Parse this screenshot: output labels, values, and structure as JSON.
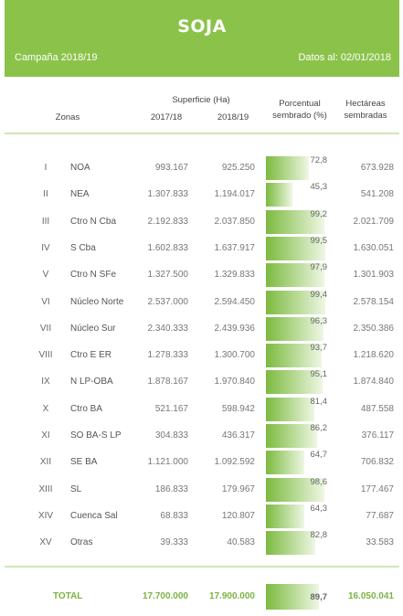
{
  "title": "SOJA",
  "campaign": "Campaña 2018/19",
  "date": "Datos al: 02/01/2018",
  "headers": {
    "zonas": "Zonas",
    "superficie": "Superficie (Ha)",
    "y1": "2017/18",
    "y2": "2018/19",
    "pct_line1": "Porcentual",
    "pct_line2": "sembrado (%)",
    "ha_line1": "Hectáreas",
    "ha_line2": "sembradas"
  },
  "rows": [
    {
      "roman": "I",
      "zona": "NOA",
      "y1": "993.167",
      "y2": "925.250",
      "pct": "72,8",
      "ha": "673.928"
    },
    {
      "roman": "II",
      "zona": "NEA",
      "y1": "1.307.833",
      "y2": "1.194.017",
      "pct": "45,3",
      "ha": "541.208"
    },
    {
      "roman": "III",
      "zona": "Ctro N Cba",
      "y1": "2.192.833",
      "y2": "2.037.850",
      "pct": "99,2",
      "ha": "2.021.709"
    },
    {
      "roman": "IV",
      "zona": "S Cba",
      "y1": "1.602.833",
      "y2": "1.637.917",
      "pct": "99,5",
      "ha": "1.630.051"
    },
    {
      "roman": "V",
      "zona": "Ctro N SFe",
      "y1": "1.327.500",
      "y2": "1.329.833",
      "pct": "97,9",
      "ha": "1.301.903"
    },
    {
      "roman": "VI",
      "zona": "Núcleo Norte",
      "y1": "2.537.000",
      "y2": "2.594.450",
      "pct": "99,4",
      "ha": "2.578.154"
    },
    {
      "roman": "VII",
      "zona": "Núcleo Sur",
      "y1": "2.340.333",
      "y2": "2.439.936",
      "pct": "96,3",
      "ha": "2.350.386"
    },
    {
      "roman": "VIII",
      "zona": "Ctro E ER",
      "y1": "1.278.333",
      "y2": "1.300.700",
      "pct": "93,7",
      "ha": "1.218.620"
    },
    {
      "roman": "IX",
      "zona": "N LP-OBA",
      "y1": "1.878.167",
      "y2": "1.970.840",
      "pct": "95,1",
      "ha": "1.874.840"
    },
    {
      "roman": "X",
      "zona": "Ctro BA",
      "y1": "521.167",
      "y2": "598.942",
      "pct": "81,4",
      "ha": "487.558"
    },
    {
      "roman": "XI",
      "zona": "SO BA-S LP",
      "y1": "304.833",
      "y2": "436.317",
      "pct": "86,2",
      "ha": "376.117"
    },
    {
      "roman": "XII",
      "zona": "SE BA",
      "y1": "1.121.000",
      "y2": "1.092.592",
      "pct": "64,7",
      "ha": "706.832"
    },
    {
      "roman": "XIII",
      "zona": "SL",
      "y1": "186.833",
      "y2": "179.967",
      "pct": "98,6",
      "ha": "177.467"
    },
    {
      "roman": "XIV",
      "zona": "Cuenca Sal",
      "y1": "68.833",
      "y2": "120.807",
      "pct": "64,3",
      "ha": "77.687"
    },
    {
      "roman": "XV",
      "zona": "Otras",
      "y1": "39.333",
      "y2": "40.583",
      "pct": "82,8",
      "ha": "33.583"
    }
  ],
  "total": {
    "label": "TOTAL",
    "y1": "17.700.000",
    "y2": "17.900.000",
    "pct": "89,7",
    "ha": "16.050.041"
  }
}
